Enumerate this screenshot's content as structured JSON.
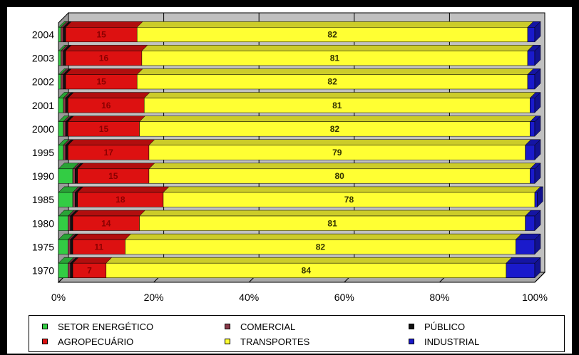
{
  "chart_data": {
    "type": "bar",
    "orientation": "horizontal",
    "stacked": "percent",
    "categories": [
      "2004",
      "2003",
      "2002",
      "2001",
      "2000",
      "1995",
      "1990",
      "1985",
      "1980",
      "1975",
      "1970"
    ],
    "x_ticks": [
      "0%",
      "20%",
      "40%",
      "60%",
      "80%",
      "100%"
    ],
    "xlim": [
      0,
      100
    ],
    "grid": true,
    "legend_position": "bottom",
    "series": [
      {
        "name": "SETOR ENERGÉTICO",
        "color": "#33cc44",
        "values": [
          0.5,
          0.5,
          0.5,
          1,
          1,
          1,
          3,
          3,
          2,
          2,
          2
        ]
      },
      {
        "name": "COMERCIAL",
        "color": "#8b3a4a",
        "values": [
          0.5,
          0.5,
          0.5,
          0.5,
          0.5,
          0.5,
          0.5,
          0.5,
          0.5,
          0.5,
          0.5
        ]
      },
      {
        "name": "PÚBLICO",
        "color": "#111111",
        "values": [
          0.5,
          0.5,
          0.5,
          0.5,
          0.5,
          0.5,
          0.5,
          0.5,
          0.5,
          0.5,
          0.5
        ]
      },
      {
        "name": "AGROPECUÁRIO",
        "color": "#dd1111",
        "values": [
          15,
          16,
          15,
          16,
          15,
          17,
          15,
          18,
          14,
          11,
          7
        ]
      },
      {
        "name": "TRANSPORTES",
        "color": "#ffff33",
        "values": [
          82,
          81,
          82,
          81,
          82,
          79,
          80,
          78,
          81,
          82,
          84
        ]
      },
      {
        "name": "INDUSTRIAL",
        "color": "#1a1acc",
        "values": [
          1.5,
          1.5,
          1.5,
          1,
          1,
          2,
          1,
          0.5,
          2,
          4,
          6
        ]
      }
    ],
    "data_labels": {
      "AGROPECUÁRIO": [
        "15",
        "16",
        "15",
        "16",
        "15",
        "17",
        "15",
        "18",
        "14",
        "11",
        "7"
      ],
      "TRANSPORTES": [
        "82",
        "81",
        "82",
        "81",
        "82",
        "79",
        "80",
        "78",
        "81",
        "82",
        "84"
      ]
    }
  }
}
